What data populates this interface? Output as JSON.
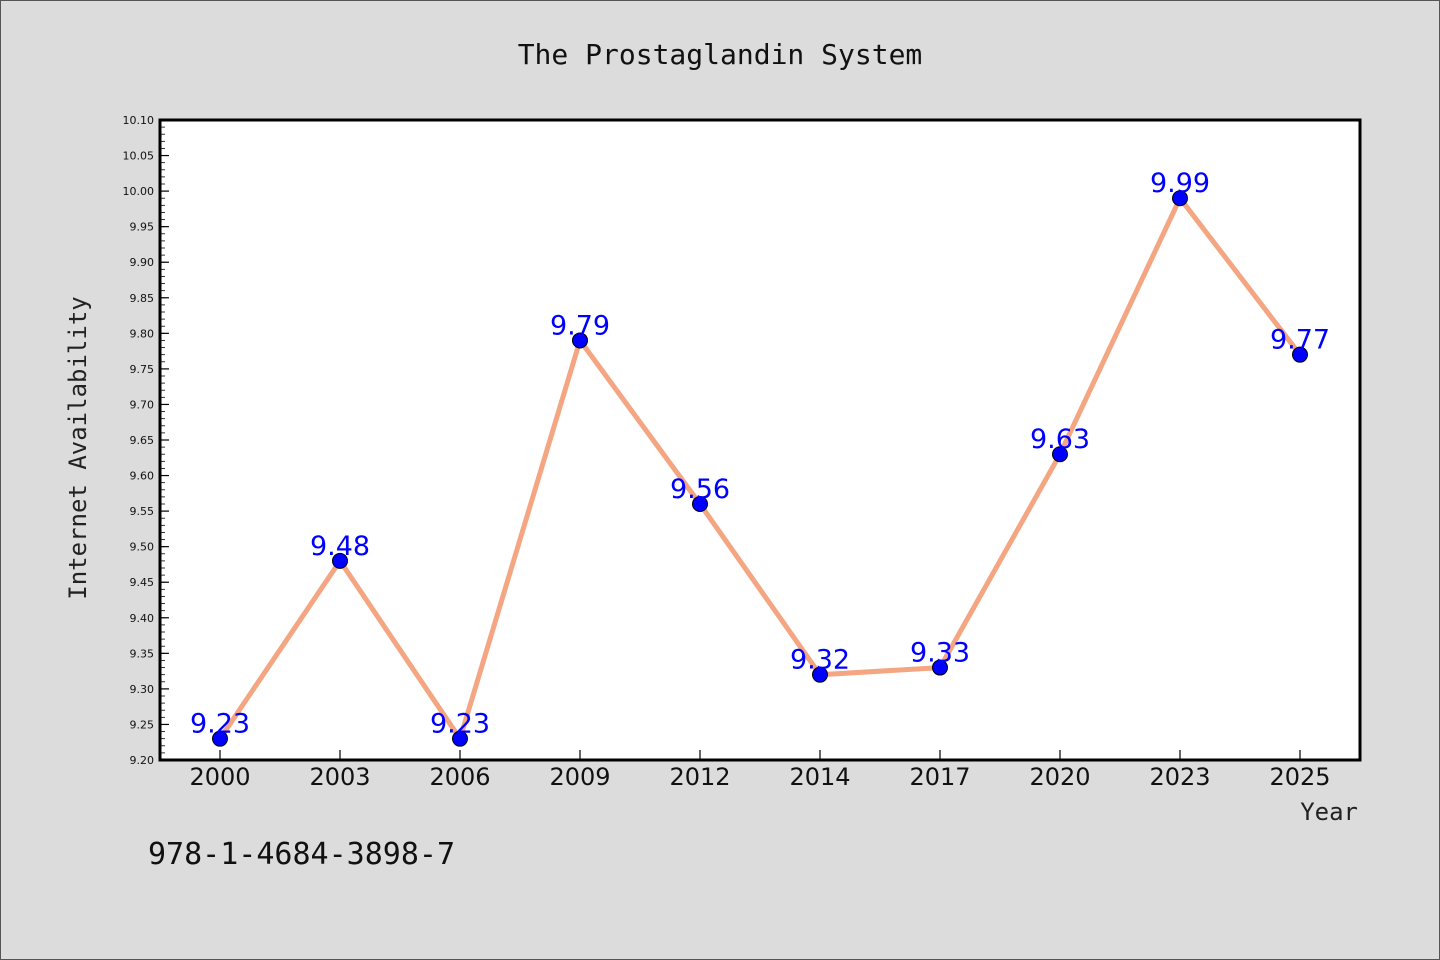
{
  "chart_data": {
    "type": "line",
    "title": "The Prostaglandin System",
    "xlabel": "Year",
    "ylabel": "Internet Availability",
    "categories": [
      "2000",
      "2003",
      "2006",
      "2009",
      "2012",
      "2014",
      "2017",
      "2020",
      "2023",
      "2025"
    ],
    "values": [
      9.23,
      9.48,
      9.23,
      9.79,
      9.56,
      9.32,
      9.33,
      9.63,
      9.99,
      9.77
    ],
    "data_labels": [
      "9.23",
      "9.48",
      "9.23",
      "9.79",
      "9.56",
      "9.32",
      "9.33",
      "9.63",
      "9.99",
      "9.77"
    ],
    "ylim": [
      9.2,
      10.1
    ],
    "ytick_labels": [
      "9.20",
      "9.25",
      "9.30",
      "9.35",
      "9.40",
      "9.45",
      "9.50",
      "9.55",
      "9.60",
      "9.65",
      "9.70",
      "9.75",
      "9.80",
      "9.85",
      "9.90",
      "9.95",
      "10.00",
      "10.05",
      "10.10"
    ],
    "grid": false,
    "line_color": "#f4a582",
    "marker_color": "#0000ff",
    "label_color": "#0000ff"
  },
  "annotation": "978-1-4684-3898-7"
}
